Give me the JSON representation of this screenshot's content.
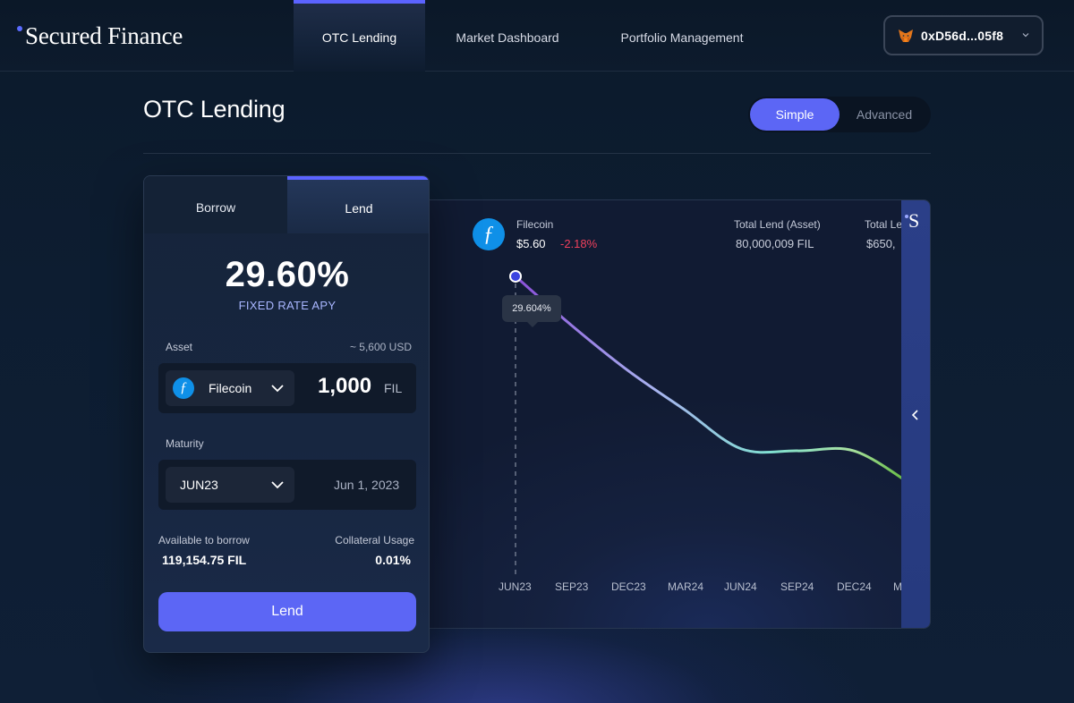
{
  "app": {
    "name": "Secured Finance"
  },
  "nav": {
    "items": [
      {
        "label": "OTC Lending",
        "active": true
      },
      {
        "label": "Market Dashboard",
        "active": false
      },
      {
        "label": "Portfolio Management",
        "active": false
      }
    ]
  },
  "wallet": {
    "address": "0xD56d...05f8",
    "icon": "metamask-fox-icon"
  },
  "page": {
    "title": "OTC Lending",
    "mode_options": [
      {
        "label": "Simple",
        "selected": true
      },
      {
        "label": "Advanced",
        "selected": false
      }
    ]
  },
  "order_card": {
    "tabs": [
      {
        "label": "Borrow",
        "selected": false
      },
      {
        "label": "Lend",
        "selected": true
      }
    ],
    "apy_value": "29.60%",
    "apy_label": "FIXED RATE APY",
    "asset": {
      "label": "Asset",
      "usd_estimate": "~ 5,600 USD",
      "selected": "Filecoin",
      "icon": "filecoin-icon",
      "amount": "1,000",
      "unit": "FIL"
    },
    "maturity": {
      "label": "Maturity",
      "selected": "JUN23",
      "date": "Jun 1, 2023"
    },
    "available_label": "Available to borrow",
    "available_value": "119,154.75 FIL",
    "collateral_label": "Collateral Usage",
    "collateral_value": "0.01%",
    "submit_label": "Lend"
  },
  "market_panel": {
    "asset_name": "Filecoin",
    "price": "$5.60",
    "change": "-2.18%",
    "stats": [
      {
        "label": "Total Lend (Asset)",
        "value": "80,000,009 FIL"
      },
      {
        "label": "Total Le",
        "value": "$650,"
      }
    ],
    "tooltip": "29.604%",
    "side_logo": "S"
  },
  "colors": {
    "accent": "#5c66f5",
    "negative": "#f0405c",
    "filecoin": "#0f90e8",
    "background": "#0d1b2d"
  },
  "chart_data": {
    "type": "line",
    "title": "",
    "xlabel": "",
    "ylabel": "",
    "categories": [
      "JUN23",
      "SEP23",
      "DEC23",
      "MAR24",
      "JUN24",
      "SEP24",
      "DEC24",
      "M"
    ],
    "series": [
      {
        "values": [
          29.604,
          27.2,
          25.0,
          23.1,
          21.2,
          21.1,
          21.1,
          19.5
        ]
      }
    ],
    "highlight": {
      "category": "JUN23",
      "value": 29.604,
      "label": "29.604%"
    },
    "ylim": [
      15,
      32
    ],
    "grid": false,
    "legend": "none"
  }
}
